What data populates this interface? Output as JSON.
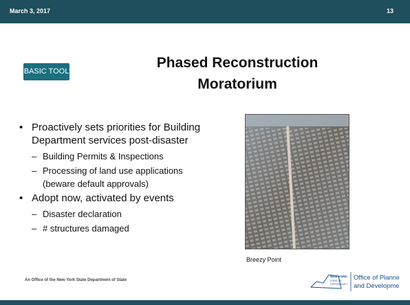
{
  "header": {
    "date": "March 3, 2017",
    "page": "13"
  },
  "badge": "BASIC TOOL",
  "title": [
    "Phased Reconstruction",
    "Moratorium"
  ],
  "bullets": [
    {
      "text": "Proactively sets priorities for Building Department services post-disaster",
      "sub": [
        "Building Permits & Inspections",
        "Processing of land use applications (beware default approvals)"
      ]
    },
    {
      "text": "Adopt now, activated by events",
      "sub": [
        "Disaster declaration",
        "# structures damaged"
      ]
    }
  ],
  "caption": "Breezy Point",
  "footer": "An Office of the New York State Department of State",
  "logo": {
    "state": [
      "NEW YORK",
      "STATE OF",
      "OPPORTUNITY"
    ],
    "office": [
      "Office of Planning",
      "and Development"
    ]
  }
}
